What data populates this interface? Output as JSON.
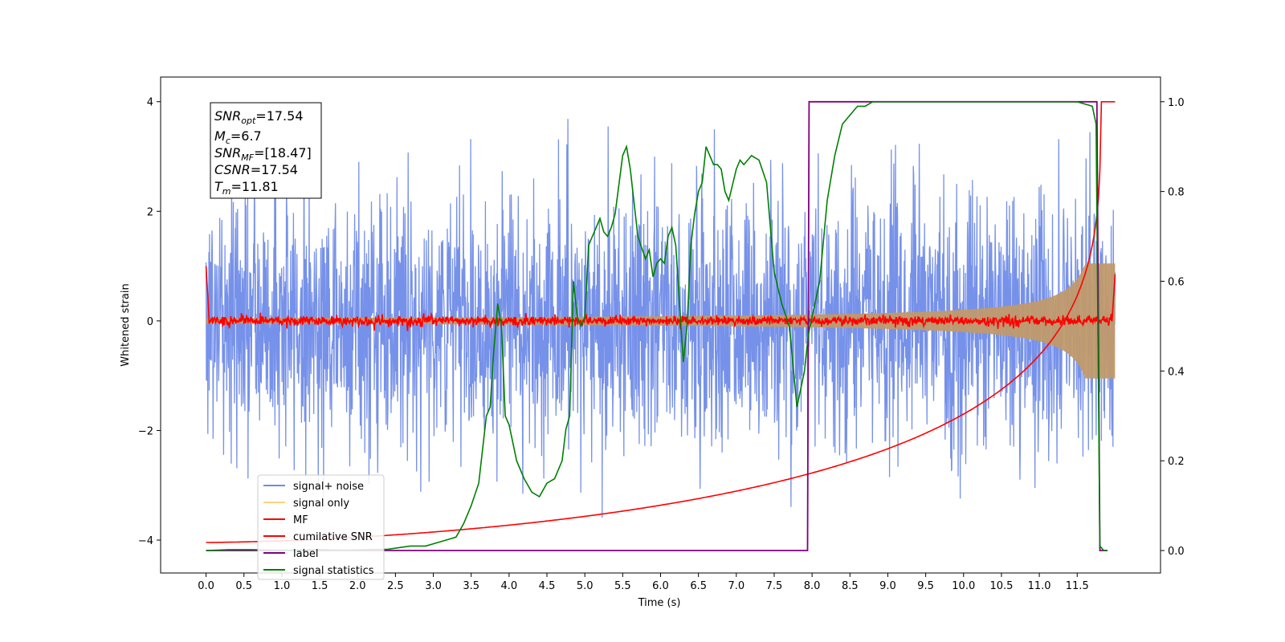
{
  "chart_data": {
    "type": "line",
    "xlabel": "Time (s)",
    "ylabel": "Whitened strain",
    "xlim": [
      -0.6,
      12.6
    ],
    "ylim": [
      -4.6,
      4.45
    ],
    "y2lim": [
      -0.05,
      1.055
    ],
    "xticks": [
      "0.0",
      "0.5",
      "1.0",
      "1.5",
      "2.0",
      "2.5",
      "3.0",
      "3.5",
      "4.0",
      "4.5",
      "5.0",
      "5.5",
      "6.0",
      "6.5",
      "7.0",
      "7.5",
      "8.0",
      "8.5",
      "9.0",
      "9.5",
      "10.0",
      "10.5",
      "11.0",
      "11.5"
    ],
    "yticks": [
      "4",
      "2",
      "0",
      "−2",
      "−4"
    ],
    "y2ticks": [
      "1.0",
      "0.8",
      "0.6",
      "0.4",
      "0.2",
      "0.0"
    ],
    "duration": 12.0,
    "merger_time": 11.81,
    "noise_amplitude": 1.0,
    "colors": {
      "signal_noise": "#6f8be8",
      "signal_only": "#c09a6b",
      "mf": "#ff0000",
      "cum_snr": "#ff0000",
      "label": "#800080",
      "stats": "#008000"
    },
    "series": [
      {
        "name": "signal+ noise",
        "kind": "noise",
        "color": "#6f8be8"
      },
      {
        "name": "signal only",
        "kind": "chirp",
        "color": "#c09a6b"
      },
      {
        "name": "MF",
        "kind": "mf",
        "color": "#ff0000"
      },
      {
        "name": "cumilative SNR",
        "kind": "cumulative",
        "axis": "right",
        "color": "#ff0000"
      },
      {
        "name": "label",
        "kind": "step",
        "axis": "right",
        "color": "#800080",
        "x": [
          0.0,
          7.94,
          7.96,
          11.76,
          11.8,
          11.9
        ],
        "y": [
          0.0,
          0.0,
          1.0,
          1.0,
          0.0,
          0.0
        ]
      },
      {
        "name": "signal statistics",
        "kind": "line",
        "axis": "right",
        "color": "#008000",
        "x": [
          0.0,
          0.3,
          0.6,
          0.9,
          1.2,
          1.5,
          1.8,
          2.1,
          2.4,
          2.7,
          2.9,
          3.1,
          3.2,
          3.3,
          3.4,
          3.5,
          3.6,
          3.7,
          3.75,
          3.8,
          3.85,
          3.9,
          3.95,
          4.0,
          4.1,
          4.2,
          4.3,
          4.4,
          4.5,
          4.6,
          4.7,
          4.75,
          4.8,
          4.85,
          4.9,
          4.95,
          5.0,
          5.05,
          5.1,
          5.15,
          5.2,
          5.25,
          5.3,
          5.35,
          5.4,
          5.5,
          5.55,
          5.6,
          5.7,
          5.8,
          5.85,
          5.9,
          5.95,
          6.0,
          6.05,
          6.1,
          6.15,
          6.2,
          6.25,
          6.3,
          6.35,
          6.4,
          6.45,
          6.5,
          6.55,
          6.6,
          6.65,
          6.7,
          6.75,
          6.8,
          6.85,
          6.9,
          7.0,
          7.05,
          7.1,
          7.2,
          7.3,
          7.4,
          7.5,
          7.6,
          7.7,
          7.8,
          7.85,
          7.9,
          7.95,
          8.0,
          8.1,
          8.2,
          8.3,
          8.4,
          8.5,
          8.6,
          8.7,
          8.8,
          9.0,
          9.5,
          10.0,
          10.5,
          11.0,
          11.5,
          11.7,
          11.75,
          11.8,
          11.85,
          11.9
        ],
        "y": [
          0.0,
          0.002,
          0.002,
          0.001,
          0.001,
          0.002,
          0.001,
          0.002,
          0.003,
          0.01,
          0.01,
          0.02,
          0.025,
          0.03,
          0.06,
          0.1,
          0.15,
          0.3,
          0.32,
          0.45,
          0.55,
          0.5,
          0.3,
          0.28,
          0.2,
          0.16,
          0.13,
          0.12,
          0.15,
          0.16,
          0.2,
          0.27,
          0.3,
          0.6,
          0.52,
          0.5,
          0.52,
          0.68,
          0.7,
          0.72,
          0.74,
          0.71,
          0.7,
          0.72,
          0.75,
          0.88,
          0.9,
          0.85,
          0.7,
          0.65,
          0.67,
          0.61,
          0.64,
          0.65,
          0.64,
          0.7,
          0.72,
          0.68,
          0.55,
          0.42,
          0.5,
          0.68,
          0.75,
          0.8,
          0.82,
          0.9,
          0.88,
          0.86,
          0.86,
          0.85,
          0.8,
          0.78,
          0.85,
          0.87,
          0.86,
          0.88,
          0.87,
          0.82,
          0.62,
          0.55,
          0.5,
          0.32,
          0.36,
          0.4,
          0.48,
          0.52,
          0.6,
          0.78,
          0.88,
          0.95,
          0.97,
          0.99,
          0.99,
          1.0,
          1.0,
          1.0,
          1.0,
          1.0,
          1.0,
          1.0,
          0.99,
          0.95,
          0.01,
          0.0,
          0.0
        ]
      }
    ],
    "legend": {
      "placement": "lower-left",
      "entries": [
        {
          "label": "signal+ noise",
          "color": "#6f8be8"
        },
        {
          "label": "signal only",
          "color": "#ffd27f"
        },
        {
          "label": "MF",
          "color": "#ff0000"
        },
        {
          "label": "cumilative SNR",
          "color": "#ff0000"
        },
        {
          "label": "label",
          "color": "#800080"
        },
        {
          "label": "signal statistics",
          "color": "#008000"
        }
      ]
    },
    "info_box": {
      "snr_opt": {
        "main": "SNR",
        "sub": "opt",
        "value": "=17.54"
      },
      "mc": {
        "main": "M",
        "sub": "c",
        "value": "=6.7"
      },
      "snr_mf": {
        "main": "SNR",
        "sub": "MF",
        "value": "=[18.47]"
      },
      "csnr": {
        "main": "CSNR",
        "value": "=17.54"
      },
      "tm": {
        "main": "T",
        "sub": "m",
        "value": "=11.81"
      }
    }
  }
}
